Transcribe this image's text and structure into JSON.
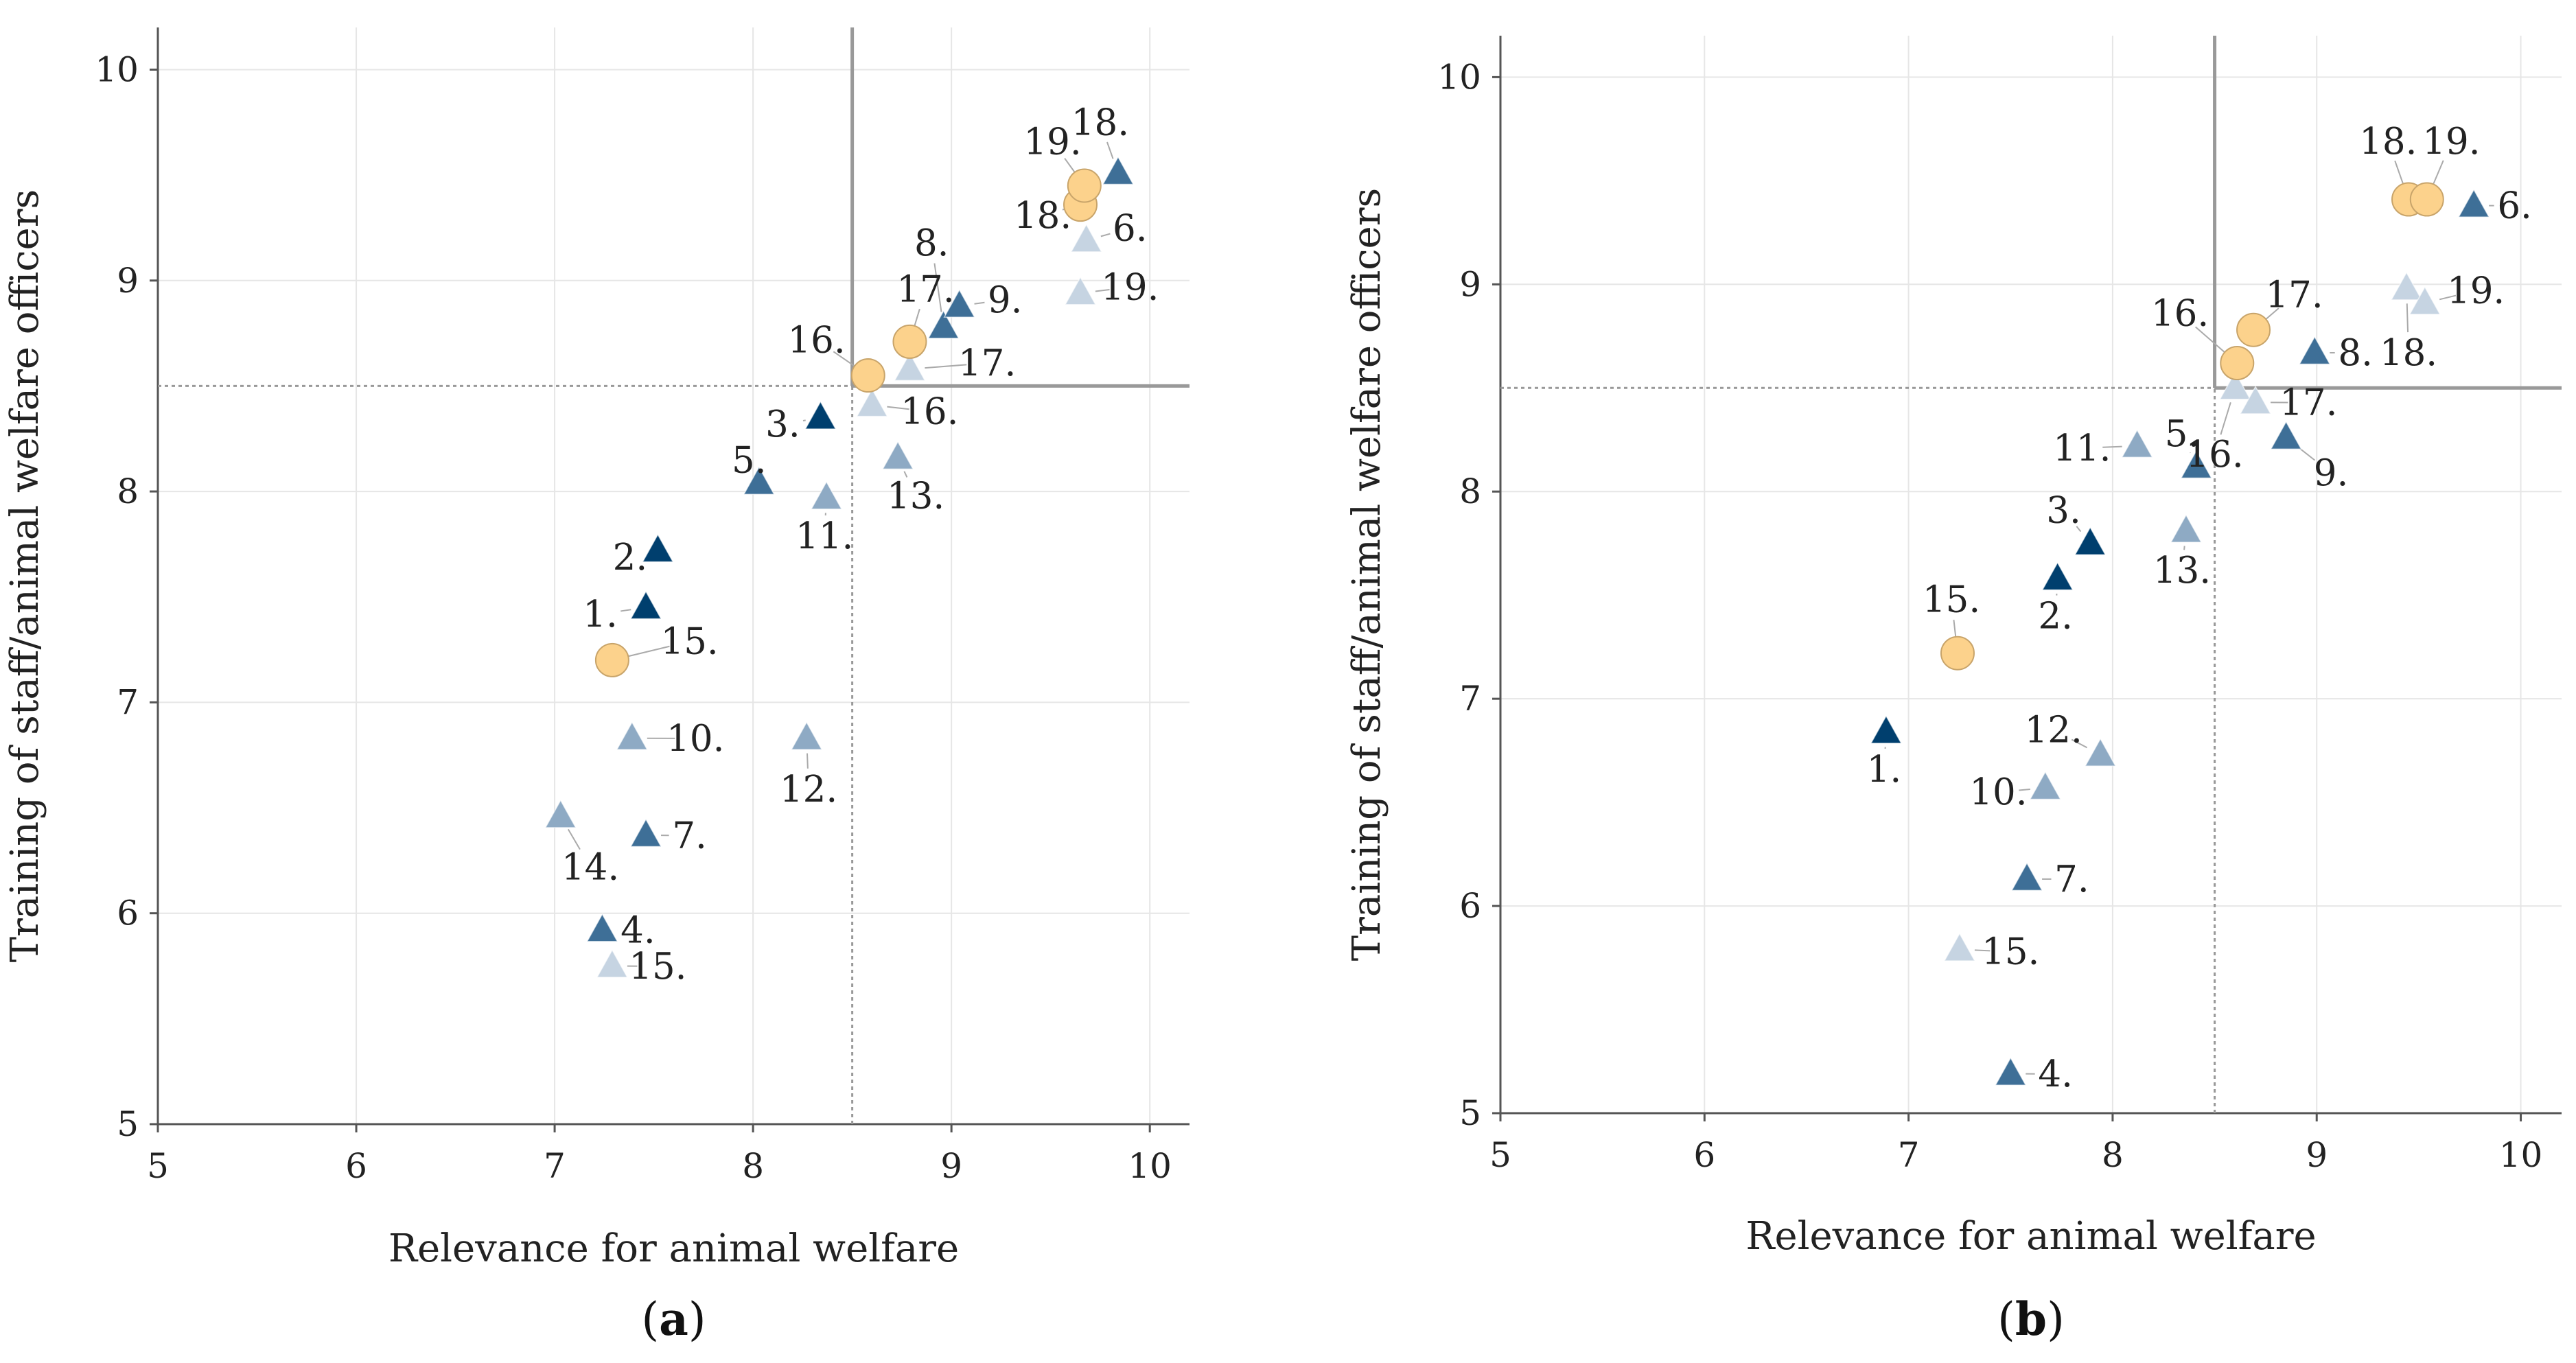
{
  "colors": {
    "circle": "#fcd28c",
    "circle_edge": "#c8a46a",
    "dark": "#003f6e",
    "mid": "#3e6f97",
    "light": "#8eaac4",
    "pale": "#c6d4e2",
    "grid": "#e6e6e6",
    "axis": "#555555",
    "threshold": "#999999",
    "leader": "#aaaaaa"
  },
  "chart_data": [
    {
      "type": "scatter",
      "panel_label": {
        "open": "(",
        "letter": "a",
        "close": ")"
      },
      "xlabel": "Relevance for animal welfare",
      "ylabel": "Training of staff/animal welfare officers",
      "xlim": [
        5,
        10.2
      ],
      "ylim": [
        5,
        10.2
      ],
      "xticks": [
        "5",
        "6",
        "7",
        "8",
        "9",
        "10"
      ],
      "yticks": [
        "5",
        "6",
        "7",
        "8",
        "9",
        "10"
      ],
      "threshold": {
        "x": 8.5,
        "y": 8.5
      },
      "points": [
        {
          "label": "1.",
          "x": 7.46,
          "y": 7.45,
          "shape": "triangle",
          "color": "dark",
          "lx": 7.23,
          "ly": 7.36
        },
        {
          "label": "2.",
          "x": 7.52,
          "y": 7.72,
          "shape": "triangle",
          "color": "dark",
          "lx": 7.38,
          "ly": 7.63
        },
        {
          "label": "3.",
          "x": 8.34,
          "y": 8.35,
          "shape": "triangle",
          "color": "dark",
          "lx": 8.15,
          "ly": 8.26
        },
        {
          "label": "4.",
          "x": 7.24,
          "y": 5.92,
          "shape": "triangle",
          "color": "mid",
          "lx": 7.42,
          "ly": 5.86
        },
        {
          "label": "5.",
          "x": 8.03,
          "y": 8.04,
          "shape": "triangle",
          "color": "mid",
          "lx": 7.98,
          "ly": 8.09
        },
        {
          "label": "6.",
          "x": 9.68,
          "y": 9.19,
          "shape": "triangle",
          "color": "pale",
          "lx": 9.9,
          "ly": 9.19
        },
        {
          "label": "7.",
          "x": 7.46,
          "y": 6.37,
          "shape": "triangle",
          "color": "mid",
          "lx": 7.68,
          "ly": 6.31
        },
        {
          "label": "8.",
          "x": 8.96,
          "y": 8.78,
          "shape": "triangle",
          "color": "mid",
          "lx": 8.9,
          "ly": 9.12
        },
        {
          "label": "9.",
          "x": 9.04,
          "y": 8.88,
          "shape": "triangle",
          "color": "mid",
          "lx": 9.27,
          "ly": 8.85
        },
        {
          "label": "10.",
          "x": 7.39,
          "y": 6.83,
          "shape": "triangle",
          "color": "light",
          "lx": 7.71,
          "ly": 6.77
        },
        {
          "label": "11.",
          "x": 8.37,
          "y": 7.97,
          "shape": "triangle",
          "color": "light",
          "lx": 8.36,
          "ly": 7.73
        },
        {
          "label": "12.",
          "x": 8.27,
          "y": 6.83,
          "shape": "triangle",
          "color": "light",
          "lx": 8.28,
          "ly": 6.53
        },
        {
          "label": "13.",
          "x": 8.73,
          "y": 8.16,
          "shape": "triangle",
          "color": "light",
          "lx": 8.82,
          "ly": 7.92
        },
        {
          "label": "14.",
          "x": 7.03,
          "y": 6.46,
          "shape": "triangle",
          "color": "light",
          "lx": 7.18,
          "ly": 6.16
        },
        {
          "label": "15.",
          "x": 7.29,
          "y": 5.75,
          "shape": "triangle",
          "color": "pale",
          "lx": 7.52,
          "ly": 5.69
        },
        {
          "label": "16.",
          "x": 8.6,
          "y": 8.41,
          "shape": "triangle",
          "color": "pale",
          "lx": 8.89,
          "ly": 8.32
        },
        {
          "label": "17.",
          "x": 8.79,
          "y": 8.58,
          "shape": "triangle",
          "color": "pale",
          "lx": 9.18,
          "ly": 8.55
        },
        {
          "label": "18.",
          "x": 9.84,
          "y": 9.51,
          "shape": "triangle",
          "color": "mid",
          "lx": 9.75,
          "ly": 9.69
        },
        {
          "label": "19.",
          "x": 9.65,
          "y": 8.94,
          "shape": "triangle",
          "color": "pale",
          "lx": 9.9,
          "ly": 8.91
        },
        {
          "label": "15.",
          "x": 7.29,
          "y": 7.2,
          "shape": "circle",
          "color": "circle",
          "lx": 7.68,
          "ly": 7.23
        },
        {
          "label": "16.",
          "x": 8.58,
          "y": 8.55,
          "shape": "circle",
          "color": "circle",
          "lx": 8.32,
          "ly": 8.66
        },
        {
          "label": "17.",
          "x": 8.79,
          "y": 8.71,
          "shape": "circle",
          "color": "circle",
          "lx": 8.87,
          "ly": 8.9
        },
        {
          "label": "18.",
          "x": 9.65,
          "y": 9.36,
          "shape": "circle",
          "color": "circle",
          "lx": 9.46,
          "ly": 9.25
        },
        {
          "label": "19.",
          "x": 9.67,
          "y": 9.45,
          "shape": "circle",
          "color": "circle",
          "lx": 9.51,
          "ly": 9.6
        }
      ]
    },
    {
      "type": "scatter",
      "panel_label": {
        "open": "(",
        "letter": "b",
        "close": ")"
      },
      "xlabel": "Relevance for animal welfare",
      "ylabel": "Training of staff/animal welfare officers",
      "xlim": [
        5,
        10.2
      ],
      "ylim": [
        5,
        10.2
      ],
      "xticks": [
        "5",
        "6",
        "7",
        "8",
        "9",
        "10"
      ],
      "yticks": [
        "5",
        "6",
        "7",
        "8",
        "9",
        "10"
      ],
      "threshold": {
        "x": 8.5,
        "y": 8.5
      },
      "points": [
        {
          "label": "1.",
          "x": 6.89,
          "y": 6.84,
          "shape": "triangle",
          "color": "dark",
          "lx": 6.88,
          "ly": 6.6
        },
        {
          "label": "2.",
          "x": 7.73,
          "y": 7.58,
          "shape": "triangle",
          "color": "dark",
          "lx": 7.72,
          "ly": 7.34
        },
        {
          "label": "3.",
          "x": 7.89,
          "y": 7.75,
          "shape": "triangle",
          "color": "dark",
          "lx": 7.76,
          "ly": 7.85
        },
        {
          "label": "4.",
          "x": 7.5,
          "y": 5.19,
          "shape": "triangle",
          "color": "mid",
          "lx": 7.72,
          "ly": 5.13
        },
        {
          "label": "5.",
          "x": 8.41,
          "y": 8.12,
          "shape": "triangle",
          "color": "mid",
          "lx": 8.34,
          "ly": 8.22
        },
        {
          "label": "6.",
          "x": 9.77,
          "y": 9.38,
          "shape": "triangle",
          "color": "mid",
          "lx": 9.97,
          "ly": 9.32
        },
        {
          "label": "7.",
          "x": 7.58,
          "y": 6.13,
          "shape": "triangle",
          "color": "mid",
          "lx": 7.8,
          "ly": 6.07
        },
        {
          "label": "8.",
          "x": 8.99,
          "y": 8.67,
          "shape": "triangle",
          "color": "mid",
          "lx": 9.19,
          "ly": 8.61
        },
        {
          "label": "9.",
          "x": 8.85,
          "y": 8.26,
          "shape": "triangle",
          "color": "mid",
          "lx": 9.07,
          "ly": 8.03
        },
        {
          "label": "10.",
          "x": 7.67,
          "y": 6.57,
          "shape": "triangle",
          "color": "light",
          "lx": 7.44,
          "ly": 6.49
        },
        {
          "label": "11.",
          "x": 8.12,
          "y": 8.22,
          "shape": "triangle",
          "color": "light",
          "lx": 7.85,
          "ly": 8.15
        },
        {
          "label": "12.",
          "x": 7.94,
          "y": 6.73,
          "shape": "triangle",
          "color": "light",
          "lx": 7.71,
          "ly": 6.79
        },
        {
          "label": "13.",
          "x": 8.36,
          "y": 7.81,
          "shape": "triangle",
          "color": "light",
          "lx": 8.34,
          "ly": 7.56
        },
        {
          "label": "15.",
          "x": 7.25,
          "y": 5.79,
          "shape": "triangle",
          "color": "pale",
          "lx": 7.5,
          "ly": 5.72
        },
        {
          "label": "16.",
          "x": 8.6,
          "y": 8.5,
          "shape": "triangle",
          "color": "pale",
          "lx": 8.5,
          "ly": 8.12
        },
        {
          "label": "17.",
          "x": 8.7,
          "y": 8.43,
          "shape": "triangle",
          "color": "pale",
          "lx": 8.96,
          "ly": 8.37
        },
        {
          "label": "18.",
          "x": 9.44,
          "y": 8.98,
          "shape": "triangle",
          "color": "pale",
          "lx": 9.45,
          "ly": 8.61
        },
        {
          "label": "19.",
          "x": 9.53,
          "y": 8.91,
          "shape": "triangle",
          "color": "pale",
          "lx": 9.78,
          "ly": 8.91
        },
        {
          "label": "15.",
          "x": 7.24,
          "y": 7.22,
          "shape": "circle",
          "color": "circle",
          "lx": 7.21,
          "ly": 7.42
        },
        {
          "label": "16.",
          "x": 8.61,
          "y": 8.62,
          "shape": "circle",
          "color": "circle",
          "lx": 8.33,
          "ly": 8.8
        },
        {
          "label": "17.",
          "x": 8.69,
          "y": 8.78,
          "shape": "circle",
          "color": "circle",
          "lx": 8.89,
          "ly": 8.89
        },
        {
          "label": "18.",
          "x": 9.45,
          "y": 9.41,
          "shape": "circle",
          "color": "circle",
          "lx": 9.35,
          "ly": 9.63
        },
        {
          "label": "19.",
          "x": 9.54,
          "y": 9.41,
          "shape": "circle",
          "color": "circle",
          "lx": 9.66,
          "ly": 9.63
        }
      ]
    }
  ]
}
